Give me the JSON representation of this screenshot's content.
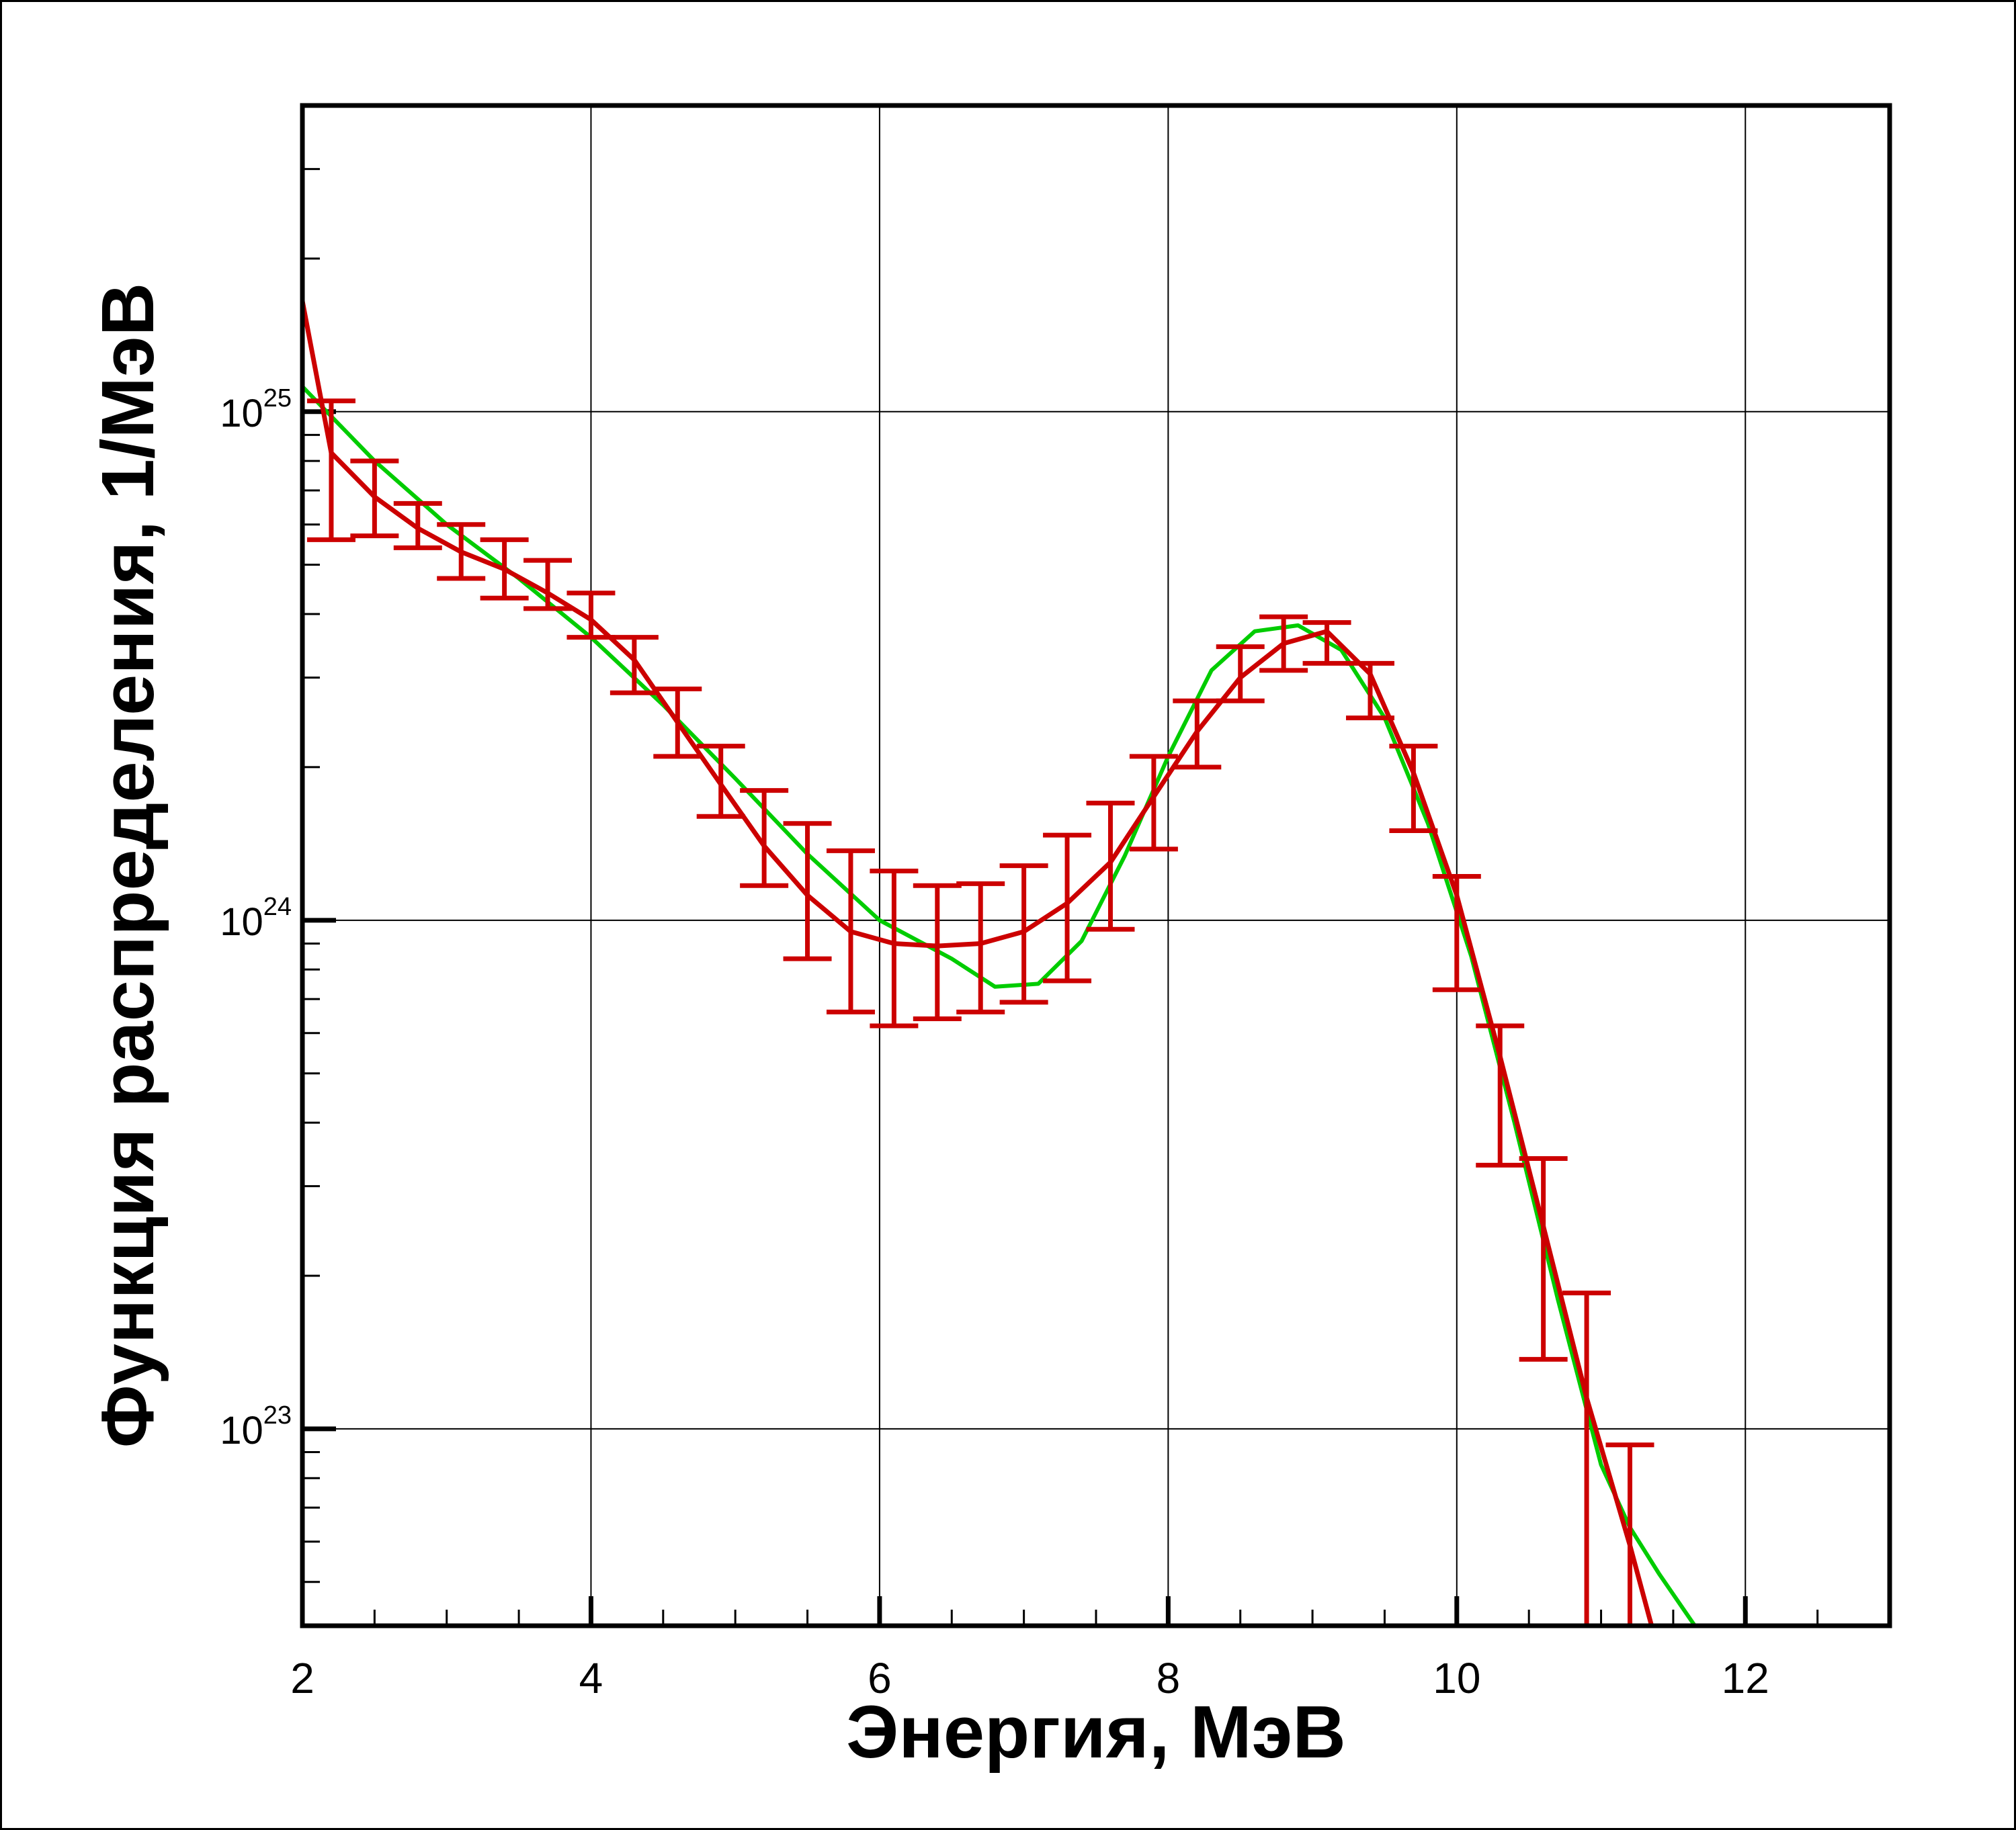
{
  "chart_data": {
    "type": "line",
    "title": "",
    "xlabel": "Энергия, МэВ",
    "ylabel": "Функция распределения, 1/МэВ",
    "xlim": [
      2,
      13
    ],
    "ylim": [
      4.1e+22,
      4e+25
    ],
    "y_scale": "log",
    "grid": true,
    "x_ticks": [
      2,
      4,
      6,
      8,
      10,
      12
    ],
    "x_tick_labels": [
      "2",
      "4",
      "6",
      "8",
      "10",
      "12"
    ],
    "y_ticks": [
      {
        "value": 1e+23,
        "base": "10",
        "exp": "23"
      },
      {
        "value": 1e+24,
        "base": "10",
        "exp": "24"
      },
      {
        "value": 1e+25,
        "base": "10",
        "exp": "25"
      }
    ],
    "series": [
      {
        "color": "#cc0000",
        "style": "line-with-error-bars",
        "x": [
          2.0,
          2.2,
          2.5,
          2.8,
          3.1,
          3.4,
          3.7,
          4.0,
          4.3,
          4.6,
          4.9,
          5.2,
          5.5,
          5.8,
          6.1,
          6.4,
          6.7,
          7.0,
          7.3,
          7.6,
          7.9,
          8.2,
          8.5,
          8.8,
          9.1,
          9.4,
          9.7,
          10.0,
          10.3,
          10.6,
          10.9,
          11.2,
          11.35
        ],
        "y": [
          1.65e+25,
          8.3e+24,
          6.8e+24,
          5.9e+24,
          5.3e+24,
          4.9e+24,
          4.4e+24,
          3.9e+24,
          3.25e+24,
          2.45e+24,
          1.85e+24,
          1.4e+24,
          1.12e+24,
          9.5e+23,
          9e+23,
          8.9e+23,
          9e+23,
          9.5e+23,
          1.08e+24,
          1.3e+24,
          1.75e+24,
          2.35e+24,
          3e+24,
          3.5e+24,
          3.7e+24,
          3.05e+24,
          1.95e+24,
          1.12e+24,
          5.4e+23,
          2.5e+23,
          1.15e+23,
          5.9e+22,
          4.1e+22
        ],
        "error_bars": [
          {
            "x": 2.2,
            "low": 5.6e+24,
            "high": 1.05e+25
          },
          {
            "x": 2.5,
            "low": 5.7e+24,
            "high": 8e+24
          },
          {
            "x": 2.8,
            "low": 5.4e+24,
            "high": 6.6e+24
          },
          {
            "x": 3.1,
            "low": 4.7e+24,
            "high": 6e+24
          },
          {
            "x": 3.4,
            "low": 4.3e+24,
            "high": 5.6e+24
          },
          {
            "x": 3.7,
            "low": 4.1e+24,
            "high": 5.1e+24
          },
          {
            "x": 4.0,
            "low": 3.6e+24,
            "high": 4.4e+24
          },
          {
            "x": 4.3,
            "low": 2.8e+24,
            "high": 3.6e+24
          },
          {
            "x": 4.6,
            "low": 2.1e+24,
            "high": 2.85e+24
          },
          {
            "x": 4.9,
            "low": 1.6e+24,
            "high": 2.2e+24
          },
          {
            "x": 5.2,
            "low": 1.17e+24,
            "high": 1.8e+24
          },
          {
            "x": 5.5,
            "low": 8.4e+23,
            "high": 1.55e+24
          },
          {
            "x": 5.8,
            "low": 6.6e+23,
            "high": 1.37e+24
          },
          {
            "x": 6.1,
            "low": 6.2e+23,
            "high": 1.25e+24
          },
          {
            "x": 6.4,
            "low": 6.4e+23,
            "high": 1.17e+24
          },
          {
            "x": 6.7,
            "low": 6.6e+23,
            "high": 1.18e+24
          },
          {
            "x": 7.0,
            "low": 6.9e+23,
            "high": 1.28e+24
          },
          {
            "x": 7.3,
            "low": 7.6e+23,
            "high": 1.47e+24
          },
          {
            "x": 7.6,
            "low": 9.6e+23,
            "high": 1.7e+24
          },
          {
            "x": 7.9,
            "low": 1.38e+24,
            "high": 2.1e+24
          },
          {
            "x": 8.2,
            "low": 2e+24,
            "high": 2.7e+24
          },
          {
            "x": 8.5,
            "low": 2.7e+24,
            "high": 3.45e+24
          },
          {
            "x": 8.8,
            "low": 3.1e+24,
            "high": 3.95e+24
          },
          {
            "x": 9.1,
            "low": 3.2e+24,
            "high": 3.85e+24
          },
          {
            "x": 9.4,
            "low": 2.5e+24,
            "high": 3.2e+24
          },
          {
            "x": 9.7,
            "low": 1.5e+24,
            "high": 2.2e+24
          },
          {
            "x": 10.0,
            "low": 7.3e+23,
            "high": 1.22e+24
          },
          {
            "x": 10.3,
            "low": 3.3e+23,
            "high": 6.2e+23
          },
          {
            "x": 10.6,
            "low": 1.37e+23,
            "high": 3.4e+23
          },
          {
            "x": 10.9,
            "low": 4.1e+22,
            "high": 1.85e+23
          },
          {
            "x": 11.2,
            "low": 4.1e+22,
            "high": 9.3e+22
          }
        ]
      },
      {
        "color": "#00cc00",
        "style": "line",
        "x": [
          2.0,
          2.5,
          3.0,
          3.5,
          4.0,
          4.5,
          5.0,
          5.5,
          6.0,
          6.5,
          6.8,
          7.1,
          7.4,
          7.7,
          8.0,
          8.3,
          8.6,
          8.9,
          9.2,
          9.5,
          9.8,
          10.1,
          10.4,
          10.7,
          11.0,
          11.2,
          11.4,
          11.65
        ],
        "y": [
          1.12e+25,
          8e+24,
          6e+24,
          4.7e+24,
          3.6e+24,
          2.65e+24,
          1.9e+24,
          1.35e+24,
          1e+24,
          8.4e+23,
          7.4e+23,
          7.5e+23,
          9.1e+23,
          1.34e+24,
          2.1e+24,
          3.1e+24,
          3.7e+24,
          3.8e+24,
          3.4e+24,
          2.5e+24,
          1.55e+24,
          8.5e+23,
          4e+23,
          1.8e+23,
          8.5e+22,
          6.4e+22,
          5.2e+22,
          4.1e+22
        ]
      }
    ]
  }
}
